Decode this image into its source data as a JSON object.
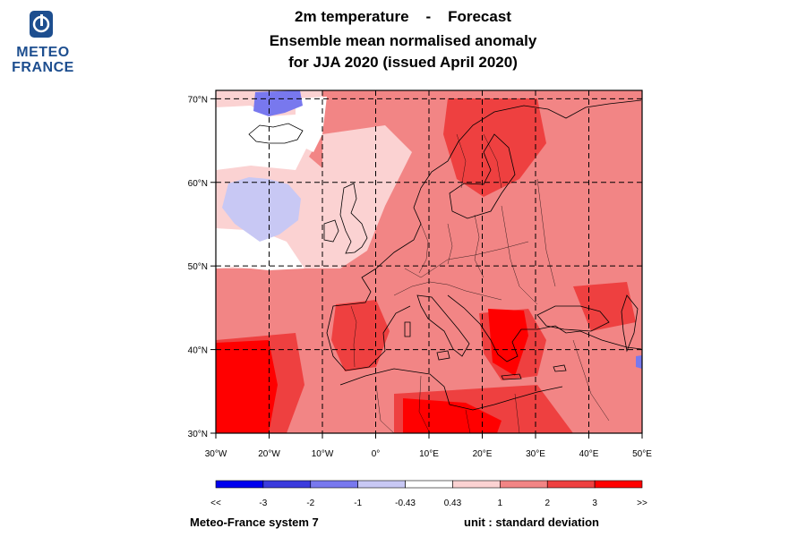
{
  "logo": {
    "line1": "METEO",
    "line2": "FRANCE",
    "brand_color": "#1d4e8f"
  },
  "title": {
    "line1_a": "2m temperature",
    "line1_sep": "-",
    "line1_b": "Forecast",
    "line2": "Ensemble mean normalised anomaly",
    "line3": "for JJA 2020   (issued April 2020)"
  },
  "map": {
    "lon_ticks": [
      "30°W",
      "20°W",
      "10°W",
      "0°",
      "10°E",
      "20°E",
      "30°E",
      "40°E",
      "50°E"
    ],
    "lat_ticks": [
      "70°N",
      "60°N",
      "50°N",
      "40°N",
      "30°N"
    ],
    "gridlines": "dashed",
    "extent": {
      "lon": [
        -30,
        50
      ],
      "lat": [
        30,
        71
      ]
    }
  },
  "legend": {
    "bins": [
      {
        "color": "#0000ee"
      },
      {
        "color": "#3b3bdd"
      },
      {
        "color": "#7878ee"
      },
      {
        "color": "#c8c8f4"
      },
      {
        "color": "#ffffff"
      },
      {
        "color": "#fbd2d2"
      },
      {
        "color": "#f28585"
      },
      {
        "color": "#ee4040"
      },
      {
        "color": "#ff0000"
      }
    ],
    "labels": [
      "<<",
      "-3",
      "-2",
      "-1",
      "-0.43",
      "0.43",
      "1",
      "2",
      "3",
      ">>"
    ]
  },
  "footer": {
    "left": "Meteo-France system 7",
    "right": "unit : standard deviation"
  }
}
